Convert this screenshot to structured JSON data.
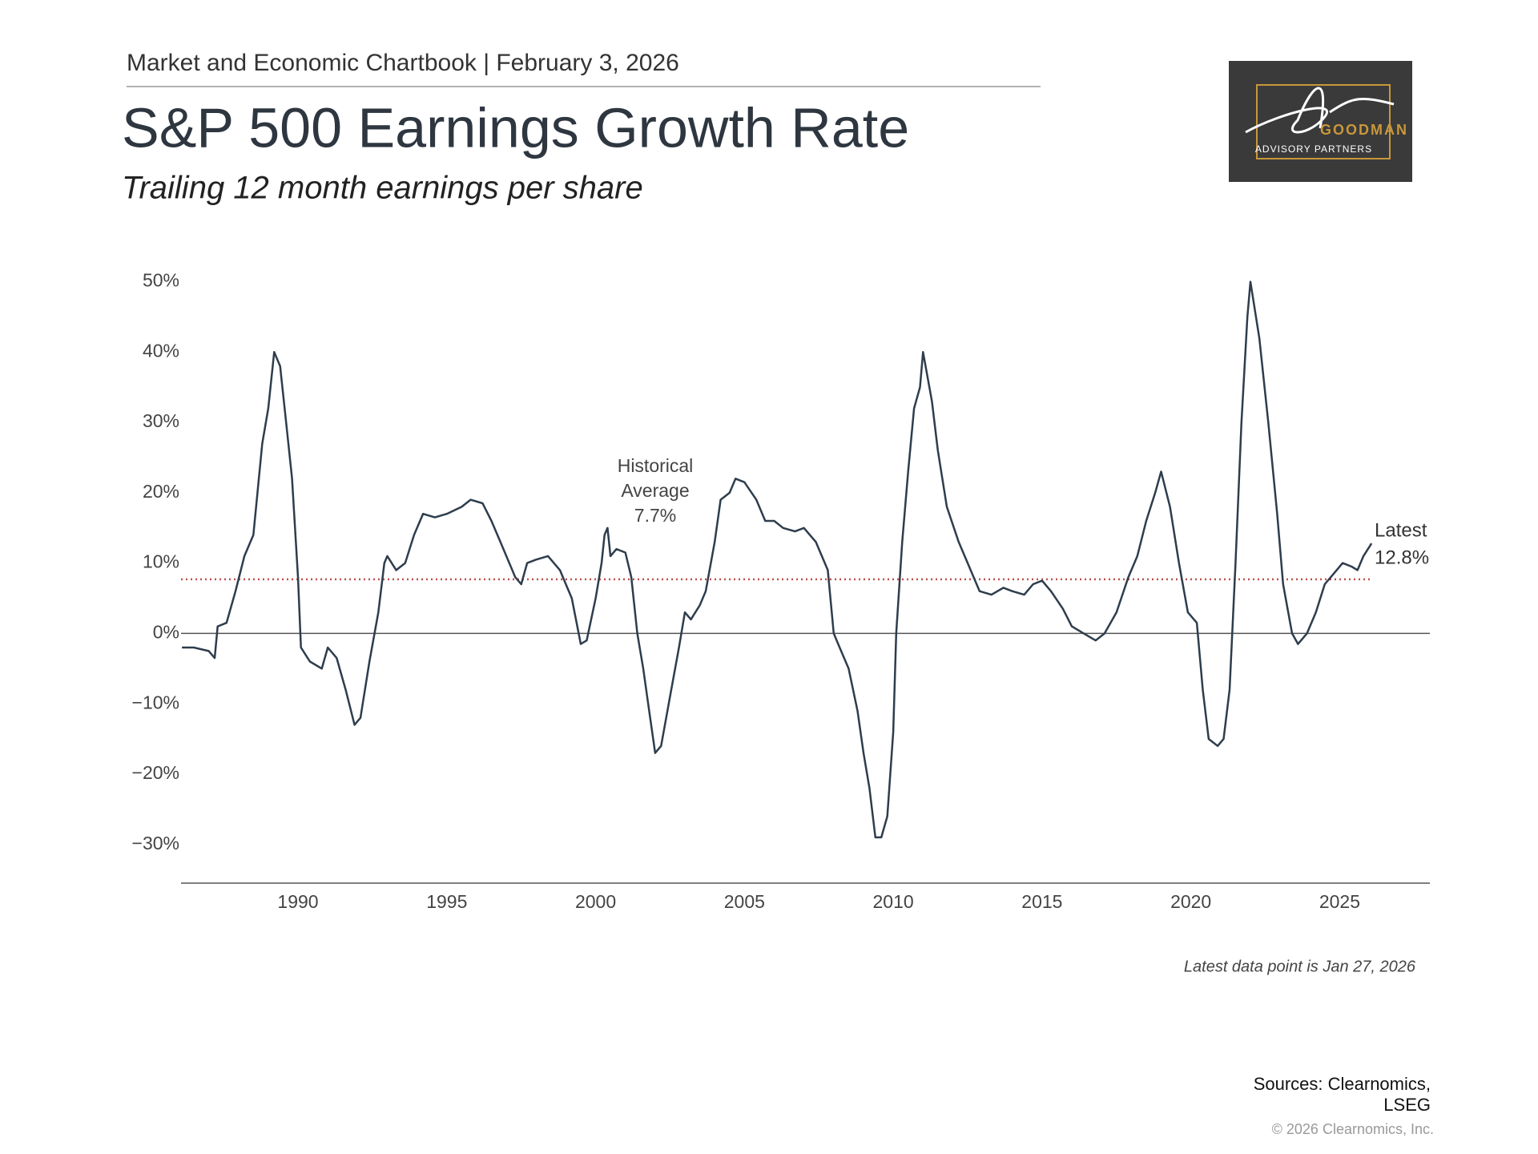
{
  "header": "Market and Economic Chartbook | February 3, 2026",
  "logo": {
    "name": "GOODMAN",
    "tagline": "ADVISORY PARTNERS"
  },
  "chart_data": {
    "type": "line",
    "title": "S&P 500 Earnings Growth Rate",
    "subtitle": "Trailing 12 month earnings per share",
    "color": "#2e3d4d",
    "x": [
      1986.1,
      1986.5,
      1987.0,
      1987.2,
      1987.3,
      1987.6,
      1987.9,
      1988.2,
      1988.5,
      1988.8,
      1989.0,
      1989.2,
      1989.4,
      1989.6,
      1989.8,
      1990.0,
      1990.1,
      1990.4,
      1990.8,
      1991.0,
      1991.3,
      1991.6,
      1991.9,
      1992.1,
      1992.4,
      1992.7,
      1992.9,
      1993.0,
      1993.3,
      1993.6,
      1993.9,
      1994.2,
      1994.6,
      1995.0,
      1995.5,
      1995.8,
      1996.2,
      1996.5,
      1996.8,
      1997.1,
      1997.3,
      1997.5,
      1997.7,
      1998.0,
      1998.4,
      1998.8,
      1999.0,
      1999.2,
      1999.5,
      1999.7,
      2000.0,
      2000.2,
      2000.3,
      2000.4,
      2000.5,
      2000.7,
      2001.0,
      2001.2,
      2001.4,
      2001.6,
      2001.8,
      2002.0,
      2002.2,
      2002.5,
      2002.8,
      2003.0,
      2003.2,
      2003.5,
      2003.7,
      2004.0,
      2004.2,
      2004.5,
      2004.7,
      2005.0,
      2005.4,
      2005.7,
      2006.0,
      2006.3,
      2006.7,
      2007.0,
      2007.4,
      2007.8,
      2008.0,
      2008.2,
      2008.5,
      2008.8,
      2009.0,
      2009.2,
      2009.4,
      2009.6,
      2009.8,
      2010.0,
      2010.1,
      2010.3,
      2010.5,
      2010.7,
      2010.9,
      2011.0,
      2011.3,
      2011.5,
      2011.8,
      2012.2,
      2012.5,
      2012.9,
      2013.3,
      2013.7,
      2014.0,
      2014.4,
      2014.7,
      2015.0,
      2015.3,
      2015.7,
      2016.0,
      2016.4,
      2016.8,
      2017.1,
      2017.5,
      2017.9,
      2018.2,
      2018.5,
      2018.8,
      2019.0,
      2019.3,
      2019.6,
      2019.9,
      2020.2,
      2020.4,
      2020.6,
      2020.9,
      2021.1,
      2021.3,
      2021.5,
      2021.7,
      2021.9,
      2022.0,
      2022.3,
      2022.6,
      2022.9,
      2023.1,
      2023.4,
      2023.6,
      2023.9,
      2024.2,
      2024.5,
      2024.8,
      2025.1,
      2025.4,
      2025.6,
      2025.8,
      2026.07
    ],
    "values": [
      -2,
      -2,
      -2.5,
      -3.5,
      1,
      1.5,
      6,
      11,
      14,
      27,
      32,
      40,
      38,
      30,
      22,
      8,
      -2,
      -4,
      -5,
      -2,
      -3.5,
      -8,
      -13,
      -12,
      -4,
      3,
      10,
      11,
      9,
      10,
      14,
      17,
      16.5,
      17,
      18,
      19,
      18.5,
      16,
      13,
      10,
      8,
      7,
      10,
      10.5,
      11,
      9,
      7,
      5,
      -1.5,
      -1,
      5,
      10,
      14,
      15,
      11,
      12,
      11.5,
      8,
      0,
      -5,
      -11,
      -17,
      -16,
      -9,
      -2,
      3,
      2,
      4,
      6,
      13,
      19,
      20,
      22,
      21.5,
      19,
      16,
      16,
      15,
      14.5,
      15,
      13,
      9,
      0,
      -2,
      -5,
      -11,
      -17,
      -22,
      -29,
      -29,
      -26,
      -14,
      0,
      13,
      23,
      32,
      35,
      40,
      33,
      26,
      18,
      13,
      10,
      6,
      5.5,
      6.5,
      6,
      5.5,
      7,
      7.5,
      6,
      3.5,
      1,
      0,
      -1,
      0,
      3,
      8,
      11,
      16,
      20,
      23,
      18,
      10,
      3,
      1.5,
      -8,
      -15,
      -16,
      -15,
      -8,
      10,
      30,
      45,
      50,
      42,
      30,
      17,
      7,
      0,
      -1.5,
      0,
      3,
      7,
      8.5,
      10,
      9.5,
      9,
      11,
      12.8
    ],
    "xlim": [
      1986.07,
      2028.03
    ],
    "xticks": [
      1990,
      1995,
      2000,
      2005,
      2010,
      2015,
      2020,
      2025
    ],
    "ylim": [
      -35.5,
      52
    ],
    "yticks": [
      {
        "value": 50,
        "label": "50%"
      },
      {
        "value": 40,
        "label": "40%"
      },
      {
        "value": 30,
        "label": "30%"
      },
      {
        "value": 20,
        "label": "20%"
      },
      {
        "value": 10,
        "label": "10%"
      },
      {
        "value": 0,
        "label": "0%"
      },
      {
        "value": -10,
        "label": "−10%"
      },
      {
        "value": -20,
        "label": "−20%"
      },
      {
        "value": -30,
        "label": "−30%"
      }
    ],
    "average": {
      "lines": [
        "Historical",
        "Average"
      ],
      "value": 7.7,
      "label": "7.7%",
      "color": "#c0504d"
    },
    "latest": {
      "text": "Latest",
      "value": 12.8,
      "label": "12.8%"
    },
    "note": "Latest data point is Jan 27, 2026"
  },
  "sources": [
    "Sources: Clearnomics,",
    "LSEG"
  ],
  "copyright": "© 2026 Clearnomics, Inc."
}
